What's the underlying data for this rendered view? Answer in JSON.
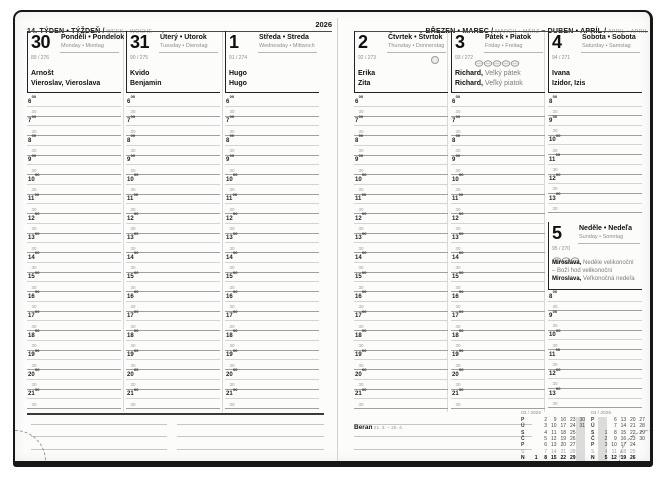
{
  "header": {
    "week_label_bold": "14. TÝDEN • TÝŽDEŇ /",
    "week_label_light": " WEEK • WOCHE",
    "year": "2026",
    "month_label_bold_1": "BŘEZEN • MAREC /",
    "month_label_light_1": " MARCH • MÄRZ ",
    "month_label_dash": "– ",
    "month_label_bold_2": "DUBEN • APRÍL /",
    "month_label_light_2": " APRIL • APRIL"
  },
  "time": {
    "minutes_sup": "00",
    "half_label": "30",
    "full_day_hours": [
      "6",
      "7",
      "8",
      "9",
      "10",
      "11",
      "12",
      "13",
      "14",
      "15",
      "16",
      "17",
      "18",
      "19",
      "20",
      "21"
    ],
    "weekend_hours": [
      "8",
      "9",
      "10",
      "11",
      "12",
      "13"
    ]
  },
  "days": [
    {
      "num": "30",
      "name_local": "Pondělí • Pondelok",
      "name_intl": "Monday • Montag",
      "day_of_year": "89 / 276",
      "entries": [
        {
          "bold": "Arnošt",
          "rest": ""
        },
        {
          "bold": "Vieroslav, Vieroslava",
          "rest": ""
        }
      ],
      "hours": "full"
    },
    {
      "num": "31",
      "name_local": "Úterý • Utorok",
      "name_intl": "Tuesday • Dienstag",
      "day_of_year": "90 / 275",
      "entries": [
        {
          "bold": "Kvido",
          "rest": ""
        },
        {
          "bold": "Benjamin",
          "rest": ""
        }
      ],
      "hours": "full"
    },
    {
      "num": "1",
      "name_local": "Středa • Streda",
      "name_intl": "Wednesday • Mittwoch",
      "day_of_year": "91 / 274",
      "entries": [
        {
          "bold": "Hugo",
          "rest": ""
        },
        {
          "bold": "Hugo",
          "rest": ""
        }
      ],
      "hours": "full"
    },
    {
      "num": "2",
      "name_local": "Čtvrtek • Štvrtok",
      "name_intl": "Thursday • Donnerstag",
      "day_of_year": "92 / 273",
      "entries": [
        {
          "bold": "Erika",
          "rest": ""
        },
        {
          "bold": "Zita",
          "rest": ""
        }
      ],
      "hours": "full",
      "moon": true
    },
    {
      "num": "3",
      "name_local": "Pátek • Piatok",
      "name_intl": "Friday • Freitag",
      "day_of_year": "93 / 272",
      "entries": [
        {
          "bold": "Richard,",
          "rest": " Velký pátek"
        },
        {
          "bold": "Richard,",
          "rest": " Veľký piatok"
        }
      ],
      "hours": "full",
      "eggs": 5
    },
    {
      "num": "4",
      "name_local": "Sobota • Sobota",
      "name_intl": "Saturday • Samstag",
      "day_of_year": "94 / 271",
      "entries": [
        {
          "bold": "Ivana",
          "rest": ""
        },
        {
          "bold": "Izidor, Izis",
          "rest": ""
        }
      ],
      "hours": "weekend"
    }
  ],
  "sunday": {
    "num": "5",
    "name_local": "Neděle • Nedeľa",
    "name_intl": "Sunday • Sonntag",
    "day_of_year": "95 / 270",
    "eggs": 3,
    "entries": [
      {
        "bold": "Miroslava,",
        "rest": " Neděle velikonoční"
      },
      {
        "bold": "",
        "rest": "– Boží hod velikonoční"
      },
      {
        "bold": "Miroslava,",
        "rest": " Veľkonočná nedeľa"
      }
    ],
    "hours": "weekend"
  },
  "zodiac": {
    "name": "Beran",
    "range": " 21. 3. – 20. 4."
  },
  "mini_calendars": [
    {
      "title": "03 / 2026",
      "highlight_col": 5,
      "day_letters": [
        "P",
        "Ú",
        "S",
        "Č",
        "P",
        "S",
        "N"
      ],
      "rows": [
        {
          "d": "P",
          "cells": [
            "",
            "2",
            "9",
            "16",
            "23",
            "30"
          ],
          "style": ""
        },
        {
          "d": "Ú",
          "cells": [
            "",
            "3",
            "10",
            "17",
            "24",
            "31"
          ],
          "style": ""
        },
        {
          "d": "S",
          "cells": [
            "",
            "4",
            "11",
            "18",
            "25",
            ""
          ],
          "style": ""
        },
        {
          "d": "Č",
          "cells": [
            "",
            "5",
            "12",
            "19",
            "26",
            ""
          ],
          "style": ""
        },
        {
          "d": "P",
          "cells": [
            "",
            "6",
            "13",
            "20",
            "27",
            ""
          ],
          "style": ""
        },
        {
          "d": "S",
          "cells": [
            "",
            "7",
            "14",
            "21",
            "28",
            ""
          ],
          "style": "sat"
        },
        {
          "d": "N",
          "cells": [
            "1",
            "8",
            "15",
            "22",
            "29",
            ""
          ],
          "style": "sun"
        }
      ]
    },
    {
      "title": "04 / 2026",
      "highlight_col": 0,
      "day_letters": [
        "P",
        "Ú",
        "S",
        "Č",
        "P",
        "S",
        "N"
      ],
      "rows": [
        {
          "d": "P",
          "cells": [
            "",
            "6",
            "13",
            "20",
            "27"
          ],
          "style": ""
        },
        {
          "d": "Ú",
          "cells": [
            "",
            "7",
            "14",
            "21",
            "28"
          ],
          "style": ""
        },
        {
          "d": "S",
          "cells": [
            "1",
            "8",
            "15",
            "22",
            "29"
          ],
          "style": ""
        },
        {
          "d": "Č",
          "cells": [
            "2",
            "9",
            "16",
            "23",
            "30"
          ],
          "style": ""
        },
        {
          "d": "P",
          "cells": [
            "3",
            "10",
            "17",
            "24",
            ""
          ],
          "style": ""
        },
        {
          "d": "S",
          "cells": [
            "4",
            "11",
            "18",
            "25",
            ""
          ],
          "style": "sat"
        },
        {
          "d": "N",
          "cells": [
            "5",
            "12",
            "19",
            "26",
            ""
          ],
          "style": "sun"
        }
      ]
    }
  ],
  "colors": {
    "ink": "#171717",
    "muted": "#8d8d8d",
    "hour_line": "#d4d4d4",
    "half_line": "#a0a0a0",
    "week_highlight": "#c7c7c7"
  }
}
